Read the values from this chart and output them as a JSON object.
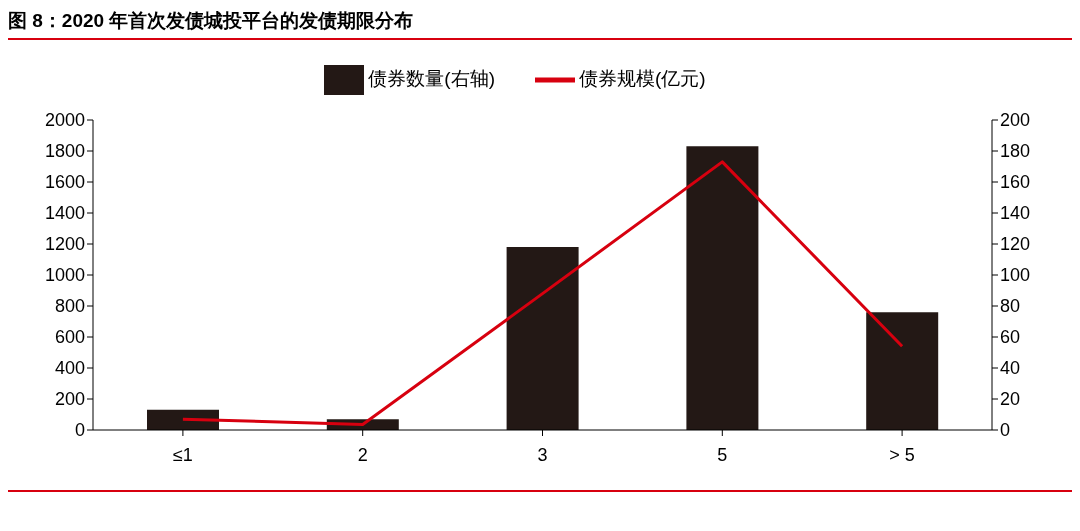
{
  "chart_data": {
    "type": "bar",
    "title": "图 8：2020 年首次发债城投平台的发债期限分布",
    "categories": [
      "≤1",
      "2",
      "3",
      "5",
      "> 5"
    ],
    "series": [
      {
        "name": "债券数量(右轴)",
        "axis": "y2",
        "color": "#231815",
        "values": [
          13,
          7,
          118,
          183,
          76
        ]
      },
      {
        "name": "债券规模(亿元)",
        "type": "line",
        "color": "#d7000f",
        "values": [
          70,
          35,
          880,
          1730,
          540
        ]
      }
    ],
    "ylim": [
      0,
      2000
    ],
    "yticks": [
      0,
      200,
      400,
      600,
      800,
      1000,
      1200,
      1400,
      1600,
      1800,
      2000
    ],
    "y2lim": [
      0,
      200
    ],
    "y2ticks": [
      0,
      20,
      40,
      60,
      80,
      100,
      120,
      140,
      160,
      180,
      200
    ],
    "legend": "top",
    "grid": false
  }
}
